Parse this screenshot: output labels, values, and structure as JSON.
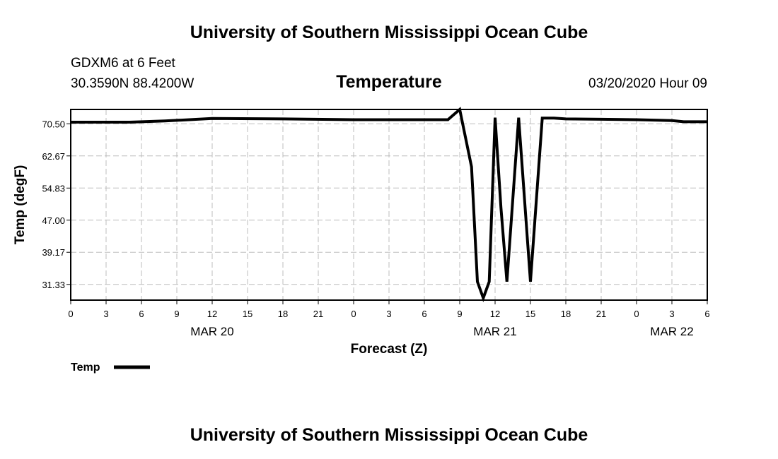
{
  "page": {
    "title_top": "University of Southern Mississippi Ocean Cube",
    "title_bottom": "University of Southern Mississippi Ocean Cube",
    "station": "GDXM6 at 6 Feet",
    "location": "30.3590N 88.4200W",
    "timestamp": "03/20/2020 Hour 09"
  },
  "chart_data": {
    "type": "line",
    "title": "Temperature",
    "xlabel": "Forecast (Z)",
    "ylabel": "Temp (degF)",
    "x_unit": "hours",
    "xlim": [
      0,
      54
    ],
    "ylim": [
      27.5,
      74.0
    ],
    "y_ticks": [
      31.33,
      39.17,
      47.0,
      54.83,
      62.67,
      70.5
    ],
    "y_tick_labels": [
      "31.33",
      "39.17",
      "47.00",
      "54.83",
      "62.67",
      "70.50"
    ],
    "x_ticks": [
      0,
      3,
      6,
      9,
      12,
      15,
      18,
      21,
      24,
      27,
      30,
      33,
      36,
      39,
      42,
      45,
      48,
      51,
      54
    ],
    "x_tick_labels": [
      "0",
      "3",
      "6",
      "9",
      "12",
      "15",
      "18",
      "21",
      "0",
      "3",
      "6",
      "9",
      "12",
      "15",
      "18",
      "21",
      "0",
      "3",
      "6"
    ],
    "date_labels": [
      {
        "label": "MAR 20",
        "x": 12
      },
      {
        "label": "MAR 21",
        "x": 36
      },
      {
        "label": "MAR 22",
        "x": 51
      }
    ],
    "grid": true,
    "legend_position": "bottom-left",
    "series": [
      {
        "name": "Temp",
        "color": "#000000",
        "x": [
          0,
          3,
          5,
          8,
          12,
          18,
          24,
          30,
          32,
          33,
          34,
          34.5,
          35,
          35.5,
          36,
          36.5,
          37,
          38,
          39,
          40,
          41,
          42,
          45,
          48,
          51,
          52,
          54
        ],
        "y": [
          70.9,
          70.9,
          70.9,
          71.2,
          71.8,
          71.7,
          71.5,
          71.5,
          71.5,
          74.0,
          60.0,
          32.0,
          28.0,
          32.0,
          72.0,
          50.0,
          32.0,
          72.0,
          32.0,
          71.9,
          71.9,
          71.7,
          71.6,
          71.5,
          71.3,
          71.0,
          71.0
        ]
      }
    ]
  }
}
